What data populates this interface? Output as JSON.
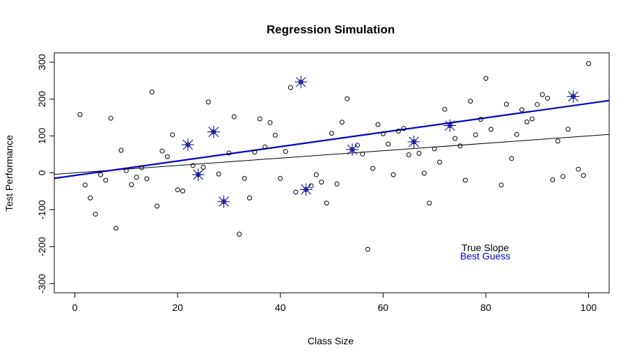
{
  "chart_data": {
    "type": "scatter",
    "title": "Regression Simulation",
    "xlabel": "Class Size",
    "ylabel": "Test Performance",
    "xlim": [
      -4,
      104
    ],
    "ylim": [
      -325,
      325
    ],
    "xticks": [
      0,
      20,
      40,
      60,
      80,
      100
    ],
    "yticks": [
      -300,
      -200,
      -100,
      0,
      100,
      200,
      300
    ],
    "grid": false,
    "points": [
      [
        1,
        158
      ],
      [
        2,
        -33
      ],
      [
        3,
        -68
      ],
      [
        4,
        -112
      ],
      [
        5,
        -5
      ],
      [
        6,
        -20
      ],
      [
        7,
        148
      ],
      [
        8,
        -150
      ],
      [
        9,
        61
      ],
      [
        10,
        6
      ],
      [
        11,
        -32
      ],
      [
        12,
        -12
      ],
      [
        13,
        14
      ],
      [
        14,
        -16
      ],
      [
        15,
        219
      ],
      [
        16,
        -90
      ],
      [
        17,
        59
      ],
      [
        18,
        44
      ],
      [
        19,
        103
      ],
      [
        20,
        -46
      ],
      [
        21,
        -49
      ],
      [
        23,
        20
      ],
      [
        25,
        15
      ],
      [
        26,
        192
      ],
      [
        28,
        -3
      ],
      [
        30,
        54
      ],
      [
        31,
        152
      ],
      [
        32,
        -166
      ],
      [
        33,
        -15
      ],
      [
        34,
        -68
      ],
      [
        35,
        56
      ],
      [
        36,
        146
      ],
      [
        37,
        70
      ],
      [
        38,
        136
      ],
      [
        39,
        102
      ],
      [
        40,
        -15
      ],
      [
        41,
        58
      ],
      [
        42,
        231
      ],
      [
        43,
        -52
      ],
      [
        46,
        -35
      ],
      [
        47,
        -5
      ],
      [
        48,
        -25
      ],
      [
        49,
        -82
      ],
      [
        50,
        107
      ],
      [
        51,
        -30
      ],
      [
        52,
        137
      ],
      [
        53,
        201
      ],
      [
        55,
        75
      ],
      [
        56,
        51
      ],
      [
        57,
        -207
      ],
      [
        58,
        12
      ],
      [
        59,
        131
      ],
      [
        60,
        106
      ],
      [
        61,
        78
      ],
      [
        62,
        -5
      ],
      [
        63,
        113
      ],
      [
        64,
        120
      ],
      [
        65,
        49
      ],
      [
        67,
        53
      ],
      [
        68,
        -1
      ],
      [
        69,
        -82
      ],
      [
        70,
        65
      ],
      [
        71,
        29
      ],
      [
        72,
        172
      ],
      [
        74,
        93
      ],
      [
        75,
        73
      ],
      [
        76,
        -20
      ],
      [
        77,
        194
      ],
      [
        78,
        103
      ],
      [
        79,
        145
      ],
      [
        80,
        256
      ],
      [
        81,
        118
      ],
      [
        83,
        -33
      ],
      [
        84,
        186
      ],
      [
        85,
        39
      ],
      [
        86,
        104
      ],
      [
        87,
        171
      ],
      [
        88,
        138
      ],
      [
        89,
        146
      ],
      [
        90,
        185
      ],
      [
        91,
        212
      ],
      [
        92,
        202
      ],
      [
        93,
        -19
      ],
      [
        94,
        86
      ],
      [
        95,
        -10
      ],
      [
        96,
        118
      ],
      [
        98,
        10
      ],
      [
        99,
        -7
      ],
      [
        100,
        296
      ]
    ],
    "highlighted_points": [
      [
        22,
        76
      ],
      [
        24,
        -5
      ],
      [
        27,
        111
      ],
      [
        29,
        -78
      ],
      [
        44,
        246
      ],
      [
        45,
        -45
      ],
      [
        54,
        63
      ],
      [
        66,
        84
      ],
      [
        73,
        128
      ],
      [
        97,
        207
      ]
    ],
    "lines": [
      {
        "name": "True Slope",
        "color": "#000000",
        "intercept": 0,
        "slope": 1,
        "width": 1
      },
      {
        "name": "Best Guess",
        "color": "#0000cd",
        "intercept": -7,
        "slope": 1.95,
        "width": 2.2
      }
    ],
    "legend": {
      "placement": "bottom-right",
      "entries": [
        {
          "label": "True Slope",
          "color": "#000000"
        },
        {
          "label": "Best Guess",
          "color": "#0000cd"
        }
      ]
    },
    "highlight_color": "#00008b"
  }
}
